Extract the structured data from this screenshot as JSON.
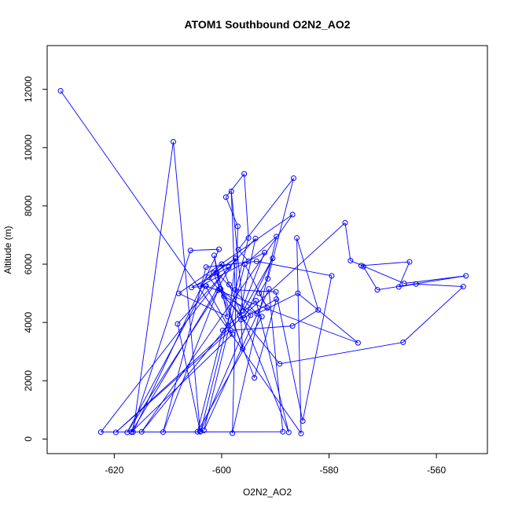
{
  "chart_data": {
    "type": "scatter",
    "title": "ATOM1 Southbound O2N2_AO2",
    "xlabel": "O2N2_AO2",
    "ylabel": "Altitude (m)",
    "xlim": [
      -632.5,
      -550.5
    ],
    "ylim": [
      -500,
      13500
    ],
    "xticks": [
      -620,
      -600,
      -580,
      -560
    ],
    "xtick_labels": [
      "-620",
      "-600",
      "-580",
      "-560"
    ],
    "yticks": [
      0,
      2000,
      4000,
      6000,
      8000,
      10000,
      12000
    ],
    "ytick_labels": [
      "0",
      "2000",
      "4000",
      "6000",
      "8000",
      "10000",
      "12000"
    ],
    "grid": false,
    "legend": "none",
    "color": "#0000ff",
    "marker": "open-circle",
    "connect_points": true,
    "series": [
      {
        "x": [
          -630.0,
          -585.2,
          -586.0,
          -582.0,
          -586.8,
          -598.3,
          -619.7,
          -577.0,
          -576.0,
          -566.0,
          -554.5,
          -571.0,
          -573.6,
          -574.0,
          -565.0,
          -567.0,
          -563.8,
          -555.0,
          -566.2,
          -589.2,
          -602.4,
          -597.4,
          -616.8,
          -605.8,
          -600.5,
          -616.5,
          -609.0,
          -604.0,
          -608.2,
          -593.7,
          -596.7,
          -592.0,
          -604.0,
          -600.0,
          -598.6,
          -587.5,
          -593.6,
          -599.8,
          -604.5,
          -592.5,
          -599.6,
          -595.8,
          -590.5,
          -596.0,
          -598.2,
          -597.5,
          -589.9,
          -584.9,
          -579.5,
          -593.5,
          -602.9,
          -610.9,
          -600.7,
          -600.2,
          -594.6,
          -603.9,
          -595.0,
          -595.8,
          -599.2,
          -597.0,
          -598.0,
          -589.8,
          -595.0,
          -596.9,
          -586.6,
          -591.4,
          -593.0,
          -591.5,
          -595.7,
          -603.3,
          -591.2,
          -588.6,
          -622.5,
          -598.7,
          -605.6,
          -602.9,
          -574.6,
          -585.8,
          -593.4,
          -600.9,
          -596.1,
          -596.4,
          -589.8,
          -593.9,
          -601.5,
          -597.4,
          -598.8,
          -614.9,
          -586.8,
          -608.0,
          -598.9,
          -601.4,
          -600.4,
          -617.6,
          -603.0,
          -598.0,
          -616.8
        ],
        "y": [
          11950,
          190,
          6900,
          4430,
          3880,
          3730,
          230,
          7420,
          6120,
          5340,
          5600,
          5120,
          5920,
          5950,
          6080,
          5220,
          5320,
          5230,
          3320,
          2580,
          5550,
          6200,
          240,
          6470,
          6510,
          240,
          10200,
          250,
          3950,
          6880,
          4240,
          6400,
          5250,
          6000,
          5300,
          230,
          4750,
          3730,
          250,
          4200,
          4900,
          4150,
          6200,
          4400,
          8500,
          5120,
          5050,
          620,
          5600,
          6100,
          5900,
          240,
          5100,
          5150,
          4250,
          270,
          6900,
          9100,
          8300,
          7300,
          200,
          6950,
          6100,
          6500,
          8950,
          5500,
          5000,
          4500,
          6000,
          300,
          5150,
          250,
          240,
          5900,
          5200,
          5250,
          3300,
          5000,
          4300,
          5700,
          3100,
          4100,
          4800,
          2100,
          5700,
          6200,
          3900,
          250,
          7700,
          5000,
          4200,
          6300,
          5150,
          230,
          5250,
          3600,
          240
        ]
      }
    ]
  }
}
